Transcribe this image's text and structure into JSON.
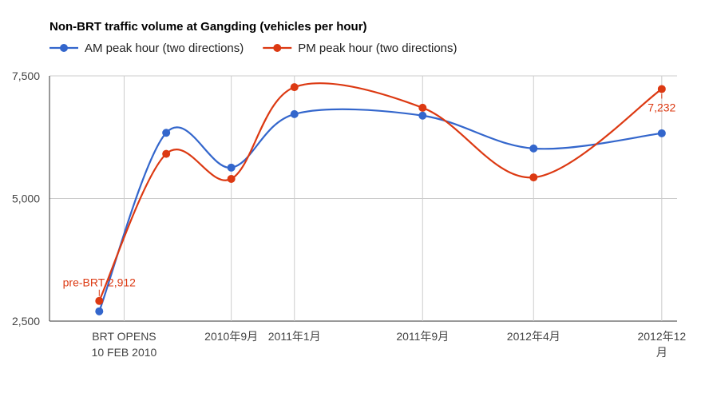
{
  "chart_data": {
    "type": "line",
    "title": "Non-BRT traffic volume at Gangding (vehicles per hour)",
    "xlabel": "",
    "ylabel": "",
    "ylim": [
      2500,
      7500
    ],
    "yticks": [
      {
        "value": 2500,
        "label": "2,500"
      },
      {
        "value": 5000,
        "label": "5,000"
      },
      {
        "value": 7500,
        "label": "7,500"
      }
    ],
    "x_range": [
      2009.72,
      2013.0
    ],
    "xticks": [
      {
        "x": 2010.11,
        "lines": [
          "BRT OPENS",
          "10 FEB 2010"
        ]
      },
      {
        "x": 2010.67,
        "lines": [
          "2010年9月"
        ]
      },
      {
        "x": 2011.0,
        "lines": [
          "2011年1月"
        ]
      },
      {
        "x": 2011.67,
        "lines": [
          "2011年9月"
        ]
      },
      {
        "x": 2012.25,
        "lines": [
          "2012年4月"
        ]
      },
      {
        "x": 2012.92,
        "lines": [
          "2012年12",
          "月"
        ]
      }
    ],
    "grid": true,
    "legend_position": "top-left",
    "series": [
      {
        "name": "AM peak hour (two directions)",
        "color": "#3366cc",
        "x": [
          2009.98,
          2010.33,
          2010.67,
          2011.0,
          2011.67,
          2012.25,
          2012.92
        ],
        "values": [
          2700,
          6340,
          5630,
          6720,
          6690,
          6020,
          6330
        ]
      },
      {
        "name": "PM peak hour (two directions)",
        "color": "#dc3912",
        "x": [
          2009.98,
          2010.33,
          2010.67,
          2011.0,
          2011.67,
          2012.25,
          2012.92
        ],
        "values": [
          2912,
          5910,
          5400,
          7270,
          6850,
          5430,
          7232
        ]
      }
    ],
    "annotations": [
      {
        "series": 1,
        "point": 0,
        "text": "pre-BRT 2,912",
        "color": "#dc3912"
      },
      {
        "series": 1,
        "point": 6,
        "text": "7,232",
        "color": "#dc3912"
      }
    ]
  }
}
